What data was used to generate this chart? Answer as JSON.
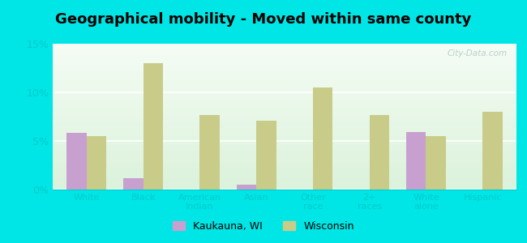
{
  "title": "Geographical mobility - Moved within same county",
  "categories": [
    "White",
    "Black",
    "American\nIndian",
    "Asian",
    "Other\nrace",
    "2+\nraces",
    "White\nalone",
    "Hispanic"
  ],
  "kaukauna_values": [
    5.8,
    1.2,
    0.0,
    0.5,
    0.0,
    0.0,
    5.9,
    0.0
  ],
  "wisconsin_values": [
    5.5,
    13.0,
    7.7,
    7.1,
    10.5,
    7.7,
    5.5,
    8.0
  ],
  "kaukauna_color": "#c8a0d0",
  "wisconsin_color": "#c8cc88",
  "background_outer": "#00e5e5",
  "background_inner": "#e8f5e0",
  "ylim": [
    0,
    15
  ],
  "yticks": [
    0,
    5,
    10,
    15
  ],
  "ytick_labels": [
    "0%",
    "5%",
    "10%",
    "15%"
  ],
  "bar_width": 0.35,
  "title_fontsize": 13,
  "tick_color": "#00cccc",
  "legend_kaukauna": "Kaukauna, WI",
  "legend_wisconsin": "Wisconsin",
  "watermark": "City-Data.com"
}
